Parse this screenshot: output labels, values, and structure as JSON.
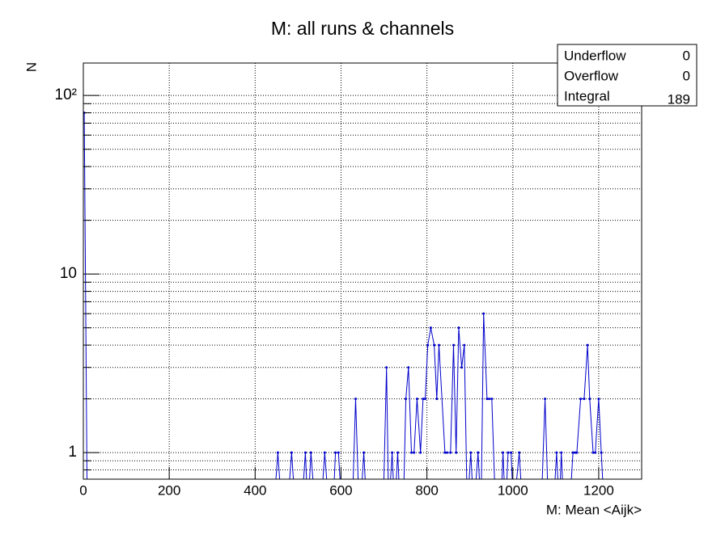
{
  "chart_data": {
    "type": "line",
    "title": "M: all runs & channels",
    "x_label": "M: Mean <Aijk>",
    "y_label": "N",
    "x": [
      2,
      9,
      443,
      453,
      462,
      475,
      485,
      494,
      508,
      517,
      523,
      530,
      540,
      553,
      562,
      572,
      581,
      587,
      594,
      602,
      626,
      634,
      642,
      645,
      653,
      660,
      698,
      706,
      711,
      719,
      725,
      732,
      738,
      745,
      751,
      757,
      764,
      770,
      777,
      785,
      791,
      796,
      802,
      809,
      817,
      823,
      828,
      842,
      847,
      855,
      862,
      868,
      874,
      881,
      887,
      894,
      902,
      909,
      919,
      926,
      932,
      940,
      945,
      951,
      960,
      972,
      977,
      983,
      989,
      996,
      1002,
      1015,
      1023,
      1066,
      1075,
      1083,
      1094,
      1102,
      1108,
      1113,
      1119,
      1132,
      1140,
      1145,
      1149,
      1158,
      1166,
      1174,
      1179,
      1187,
      1192,
      1200,
      1206,
      1213
    ],
    "series": [
      {
        "name": "M",
        "color": "#0000cc",
        "values": [
          80,
          0,
          0,
          1,
          0,
          0,
          1,
          0,
          0,
          1,
          0,
          1,
          0,
          0,
          1,
          0,
          0,
          1,
          1,
          0,
          0,
          2,
          0,
          0,
          1,
          0,
          0,
          3,
          0,
          1,
          0,
          1,
          0,
          0,
          2,
          3,
          1,
          1,
          2,
          1,
          2,
          2,
          4,
          5,
          4,
          2,
          4,
          1,
          1,
          1,
          4,
          1,
          5,
          3,
          4,
          0,
          1,
          0,
          1,
          0,
          6,
          2,
          2,
          2,
          0,
          0,
          1,
          0,
          1,
          1,
          0,
          1,
          0,
          0,
          2,
          0,
          0,
          1,
          0,
          1,
          0,
          0,
          1,
          1,
          1,
          2,
          2,
          4,
          2,
          1,
          1,
          2,
          1,
          0
        ]
      }
    ],
    "xlim": [
      0,
      1300
    ],
    "xticks": [
      0,
      200,
      400,
      600,
      800,
      1000,
      1200
    ],
    "ylim": [
      0.71,
      152
    ],
    "log_y": true,
    "yticks": [
      1,
      10,
      {
        "value": 100,
        "label": "10²"
      }
    ],
    "yminorticks": [
      0.8,
      0.9,
      2,
      3,
      4,
      5,
      6,
      7,
      8,
      9,
      20,
      30,
      40,
      50,
      60,
      70,
      80,
      90
    ],
    "grid": true,
    "stats": {
      "rows": [
        [
          "Underflow",
          "0"
        ],
        [
          "Overflow",
          "0"
        ],
        [
          "Integral",
          "189"
        ]
      ]
    }
  }
}
